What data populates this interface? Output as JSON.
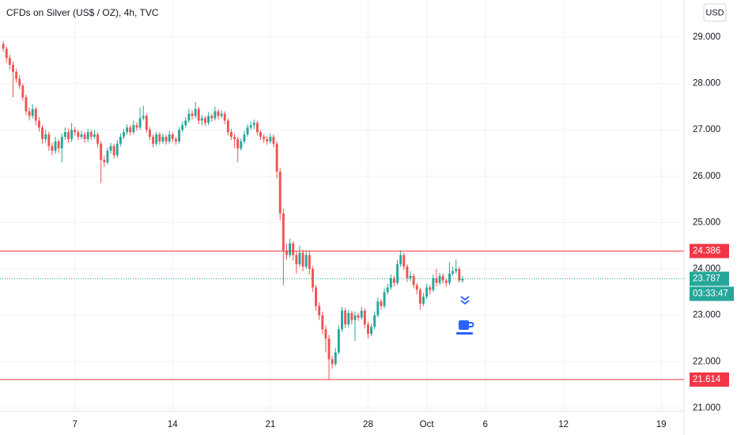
{
  "chart_data": {
    "type": "candlestick",
    "title": "CFDs on Silver (US$ / OZ), 4h, TVC",
    "currency": "USD",
    "countdown": "03:33:47",
    "up_color": "#26a69a",
    "down_color": "#ef5350",
    "hline_color": "#f23645",
    "grid": true,
    "ylim": [
      20.93,
      29.8
    ],
    "yticks": [
      {
        "value": 21,
        "label": "21.000"
      },
      {
        "value": 22,
        "label": "22.000"
      },
      {
        "value": 23,
        "label": "23.000"
      },
      {
        "value": 24,
        "label": "24.000"
      },
      {
        "value": 25,
        "label": "25.000"
      },
      {
        "value": 26,
        "label": "26.000"
      },
      {
        "value": 27,
        "label": "27.000"
      },
      {
        "value": 28,
        "label": "28.000"
      },
      {
        "value": 29,
        "label": "29.000"
      }
    ],
    "xlim": [
      -1,
      209
    ],
    "xticks": [
      {
        "value": 22,
        "label": "7"
      },
      {
        "value": 52,
        "label": "14"
      },
      {
        "value": 82,
        "label": "21"
      },
      {
        "value": 112,
        "label": "28"
      },
      {
        "value": 130,
        "label": "Oct"
      },
      {
        "value": 148,
        "label": "6"
      },
      {
        "value": 172,
        "label": "12"
      },
      {
        "value": 202,
        "label": "19"
      }
    ],
    "hlines": [
      24.386,
      21.614
    ],
    "ohlc": [
      [
        28.85,
        28.92,
        28.68,
        28.75
      ],
      [
        28.75,
        28.8,
        28.45,
        28.55
      ],
      [
        28.55,
        28.62,
        28.3,
        28.4
      ],
      [
        28.4,
        28.48,
        27.7,
        28.25
      ],
      [
        28.25,
        28.32,
        28.02,
        28.1
      ],
      [
        28.1,
        28.18,
        27.88,
        27.95
      ],
      [
        27.95,
        28.0,
        27.62,
        27.7
      ],
      [
        27.7,
        27.76,
        27.32,
        27.4
      ],
      [
        27.4,
        27.48,
        27.2,
        27.3
      ],
      [
        27.3,
        27.55,
        27.24,
        27.45
      ],
      [
        27.45,
        27.5,
        27.1,
        27.2
      ],
      [
        27.2,
        27.28,
        26.96,
        27.05
      ],
      [
        27.05,
        27.1,
        26.7,
        26.8
      ],
      [
        26.8,
        27.0,
        26.72,
        26.9
      ],
      [
        26.9,
        26.96,
        26.55,
        26.65
      ],
      [
        26.65,
        26.72,
        26.45,
        26.55
      ],
      [
        26.55,
        26.85,
        26.48,
        26.75
      ],
      [
        26.75,
        26.8,
        26.5,
        26.6
      ],
      [
        26.6,
        26.92,
        26.3,
        26.85
      ],
      [
        26.85,
        27.05,
        26.78,
        26.95
      ],
      [
        26.95,
        27.02,
        26.72,
        26.8
      ],
      [
        26.8,
        27.15,
        26.74,
        27.0
      ],
      [
        27.0,
        27.06,
        26.88,
        26.95
      ],
      [
        26.95,
        27.0,
        26.78,
        26.85
      ],
      [
        26.85,
        26.98,
        26.8,
        26.9
      ],
      [
        26.9,
        26.96,
        26.72,
        26.8
      ],
      [
        26.8,
        27.02,
        26.74,
        26.95
      ],
      [
        26.95,
        27.0,
        26.78,
        26.85
      ],
      [
        26.85,
        27.0,
        26.8,
        26.9
      ],
      [
        26.9,
        26.95,
        26.62,
        26.7
      ],
      [
        26.7,
        26.76,
        25.85,
        26.35
      ],
      [
        26.35,
        26.45,
        26.2,
        26.3
      ],
      [
        26.3,
        26.62,
        26.25,
        26.55
      ],
      [
        26.55,
        26.72,
        26.48,
        26.65
      ],
      [
        26.65,
        26.7,
        26.38,
        26.45
      ],
      [
        26.45,
        26.78,
        26.4,
        26.7
      ],
      [
        26.7,
        26.92,
        26.64,
        26.85
      ],
      [
        26.85,
        27.02,
        26.8,
        26.95
      ],
      [
        26.95,
        27.12,
        26.9,
        27.05
      ],
      [
        27.05,
        27.1,
        26.88,
        26.95
      ],
      [
        26.95,
        27.2,
        26.9,
        27.1
      ],
      [
        27.1,
        27.16,
        26.98,
        27.05
      ],
      [
        27.05,
        27.48,
        27.0,
        27.25
      ],
      [
        27.25,
        27.52,
        27.2,
        27.3
      ],
      [
        27.3,
        27.35,
        26.94,
        27.0
      ],
      [
        27.0,
        27.06,
        26.78,
        26.85
      ],
      [
        26.85,
        26.9,
        26.62,
        26.7
      ],
      [
        26.7,
        26.96,
        26.65,
        26.9
      ],
      [
        26.9,
        26.95,
        26.68,
        26.75
      ],
      [
        26.75,
        26.92,
        26.7,
        26.85
      ],
      [
        26.85,
        26.9,
        26.68,
        26.75
      ],
      [
        26.75,
        26.98,
        26.7,
        26.9
      ],
      [
        26.9,
        26.95,
        26.72,
        26.8
      ],
      [
        26.8,
        26.85,
        26.68,
        26.75
      ],
      [
        26.75,
        27.06,
        26.7,
        27.0
      ],
      [
        27.0,
        27.18,
        26.95,
        27.1
      ],
      [
        27.1,
        27.28,
        27.04,
        27.2
      ],
      [
        27.2,
        27.45,
        27.15,
        27.35
      ],
      [
        27.35,
        27.42,
        27.22,
        27.3
      ],
      [
        27.3,
        27.6,
        27.25,
        27.45
      ],
      [
        27.45,
        27.5,
        27.12,
        27.2
      ],
      [
        27.2,
        27.32,
        27.1,
        27.25
      ],
      [
        27.25,
        27.3,
        27.08,
        27.15
      ],
      [
        27.15,
        27.38,
        27.1,
        27.3
      ],
      [
        27.3,
        27.35,
        27.18,
        27.25
      ],
      [
        27.25,
        27.5,
        27.2,
        27.4
      ],
      [
        27.4,
        27.45,
        27.22,
        27.3
      ],
      [
        27.3,
        27.42,
        27.25,
        27.35
      ],
      [
        27.35,
        27.4,
        27.12,
        27.2
      ],
      [
        27.2,
        27.25,
        26.88,
        26.95
      ],
      [
        26.95,
        27.02,
        26.78,
        26.85
      ],
      [
        26.85,
        26.92,
        26.6,
        26.8
      ],
      [
        26.8,
        26.85,
        26.3,
        26.6
      ],
      [
        26.6,
        26.82,
        26.55,
        26.75
      ],
      [
        26.75,
        26.98,
        26.7,
        26.9
      ],
      [
        26.9,
        27.12,
        26.85,
        27.05
      ],
      [
        27.05,
        27.18,
        27.0,
        27.1
      ],
      [
        27.1,
        27.22,
        27.02,
        27.15
      ],
      [
        27.15,
        27.2,
        26.88,
        26.95
      ],
      [
        26.95,
        27.0,
        26.78,
        26.85
      ],
      [
        26.85,
        26.9,
        26.72,
        26.8
      ],
      [
        26.8,
        26.86,
        26.68,
        26.75
      ],
      [
        26.75,
        26.92,
        26.7,
        26.85
      ],
      [
        26.85,
        26.9,
        26.62,
        26.7
      ],
      [
        26.7,
        26.75,
        25.95,
        26.1
      ],
      [
        26.1,
        26.18,
        25.05,
        25.2
      ],
      [
        25.2,
        25.3,
        23.65,
        24.4
      ],
      [
        24.4,
        24.55,
        24.2,
        24.3
      ],
      [
        24.3,
        24.65,
        24.25,
        24.55
      ],
      [
        24.55,
        24.6,
        24.18,
        24.3
      ],
      [
        24.3,
        24.38,
        23.9,
        24.1
      ],
      [
        24.1,
        24.5,
        24.05,
        24.35
      ],
      [
        24.35,
        24.42,
        23.95,
        24.05
      ],
      [
        24.05,
        24.4,
        24.0,
        24.3
      ],
      [
        24.3,
        24.38,
        23.88,
        24.0
      ],
      [
        24.0,
        24.06,
        23.5,
        23.6
      ],
      [
        23.6,
        23.66,
        23.1,
        23.2
      ],
      [
        23.2,
        23.28,
        22.9,
        23.0
      ],
      [
        23.0,
        23.08,
        22.6,
        22.7
      ],
      [
        22.7,
        22.78,
        22.2,
        22.5
      ],
      [
        22.5,
        22.58,
        21.62,
        22.05
      ],
      [
        22.05,
        22.12,
        21.85,
        21.95
      ],
      [
        21.95,
        22.3,
        21.9,
        22.2
      ],
      [
        22.2,
        22.78,
        22.15,
        22.7
      ],
      [
        22.7,
        23.18,
        22.64,
        23.1
      ],
      [
        23.1,
        23.16,
        22.72,
        22.8
      ],
      [
        22.8,
        23.12,
        22.74,
        23.05
      ],
      [
        23.05,
        23.1,
        22.8,
        22.9
      ],
      [
        22.9,
        23.08,
        22.45,
        23.0
      ],
      [
        23.0,
        23.05,
        22.88,
        22.95
      ],
      [
        22.95,
        23.18,
        22.9,
        23.1
      ],
      [
        23.1,
        23.15,
        22.72,
        22.8
      ],
      [
        22.8,
        22.86,
        22.5,
        22.6
      ],
      [
        22.6,
        22.82,
        22.55,
        22.75
      ],
      [
        22.75,
        23.08,
        22.7,
        23.0
      ],
      [
        23.0,
        23.38,
        22.95,
        23.3
      ],
      [
        23.3,
        23.35,
        23.12,
        23.2
      ],
      [
        23.2,
        23.58,
        23.15,
        23.5
      ],
      [
        23.5,
        23.68,
        23.45,
        23.6
      ],
      [
        23.6,
        23.88,
        23.55,
        23.8
      ],
      [
        23.8,
        23.85,
        23.62,
        23.7
      ],
      [
        23.7,
        24.2,
        23.65,
        24.1
      ],
      [
        24.1,
        24.4,
        24.05,
        24.3
      ],
      [
        24.3,
        24.35,
        23.98,
        24.05
      ],
      [
        24.05,
        24.1,
        23.72,
        23.8
      ],
      [
        23.8,
        23.95,
        23.74,
        23.85
      ],
      [
        23.85,
        23.9,
        23.58,
        23.65
      ],
      [
        23.65,
        23.7,
        23.45,
        23.55
      ],
      [
        23.55,
        23.6,
        23.12,
        23.25
      ],
      [
        23.25,
        23.48,
        23.2,
        23.4
      ],
      [
        23.4,
        23.68,
        23.35,
        23.6
      ],
      [
        23.6,
        23.65,
        23.45,
        23.55
      ],
      [
        23.55,
        23.88,
        23.5,
        23.8
      ],
      [
        23.8,
        24.0,
        23.62,
        23.7
      ],
      [
        23.7,
        23.92,
        23.65,
        23.85
      ],
      [
        23.85,
        23.9,
        23.68,
        23.75
      ],
      [
        23.75,
        23.8,
        23.62,
        23.7
      ],
      [
        23.7,
        24.15,
        23.65,
        23.9
      ],
      [
        23.9,
        24.05,
        23.85,
        23.95
      ],
      [
        23.95,
        24.2,
        23.9,
        24.0
      ],
      [
        24.0,
        24.05,
        23.7,
        23.75
      ],
      [
        23.75,
        23.85,
        23.7,
        23.787
      ]
    ]
  }
}
